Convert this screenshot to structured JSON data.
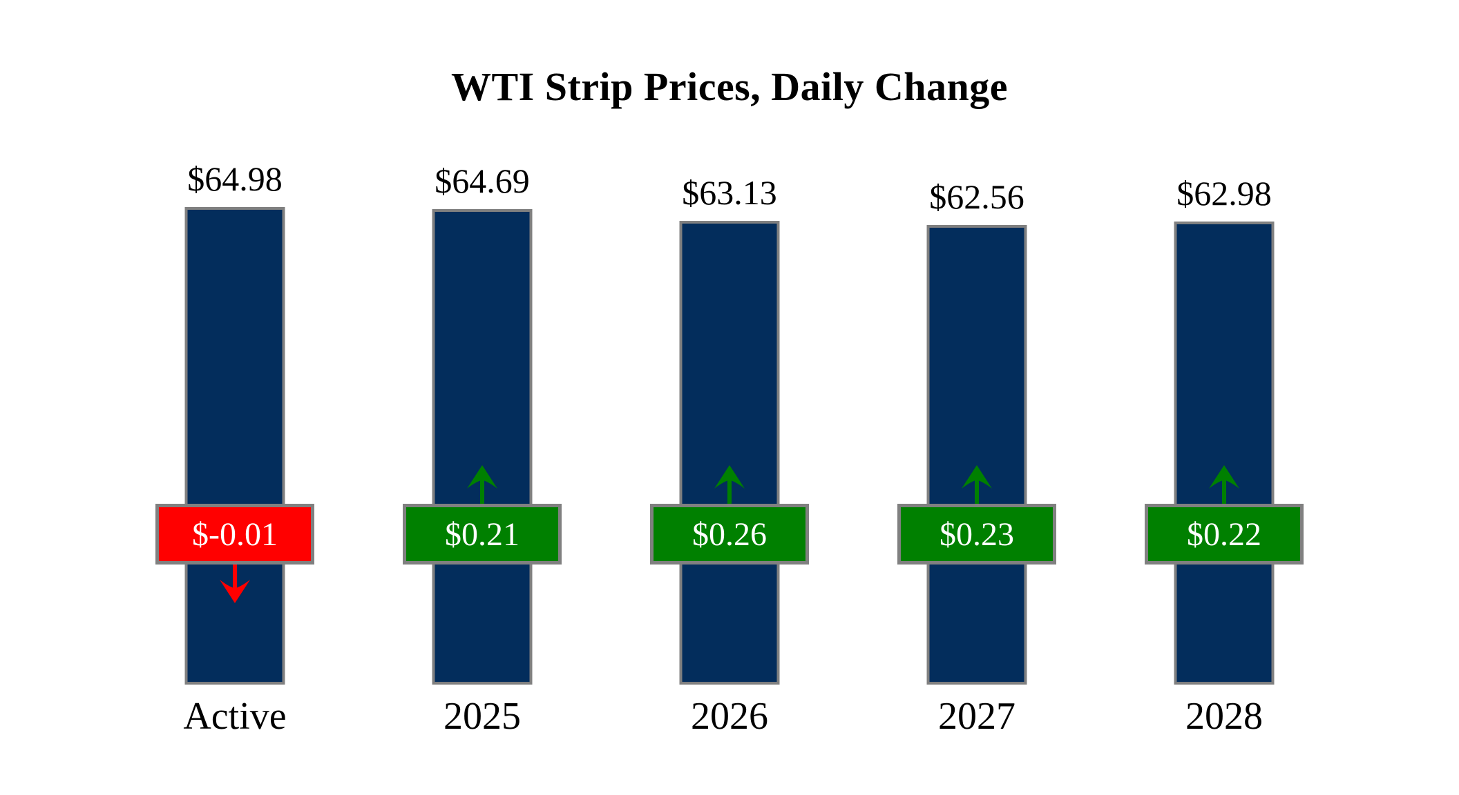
{
  "title": "WTI Strip Prices, Daily Change",
  "colors": {
    "bar_fill": "#032d5c",
    "bar_border": "#808080",
    "badge_border": "#808080",
    "positive": "#008000",
    "negative": "#ff0000",
    "badge_text": "#ffffff",
    "text": "#000000",
    "background": "#ffffff"
  },
  "chart_data": {
    "type": "bar",
    "title": "WTI Strip Prices, Daily Change",
    "categories": [
      "Active",
      "2025",
      "2026",
      "2027",
      "2028"
    ],
    "series": [
      {
        "name": "Strip Price",
        "values": [
          64.98,
          64.69,
          63.13,
          62.56,
          62.98
        ]
      },
      {
        "name": "Daily Change",
        "values": [
          -0.01,
          0.21,
          0.26,
          0.23,
          0.22
        ]
      }
    ],
    "price_labels": [
      "$64.98",
      "$64.69",
      "$63.13",
      "$62.56",
      "$62.98"
    ],
    "change_labels": [
      "$-0.01",
      "$0.21",
      "$0.26",
      "$0.23",
      "$0.22"
    ],
    "directions": [
      "down",
      "up",
      "up",
      "up",
      "up"
    ],
    "xlabel": "",
    "ylabel": "",
    "ylim": [
      0,
      64.98
    ],
    "grid": false,
    "legend_position": "none"
  }
}
